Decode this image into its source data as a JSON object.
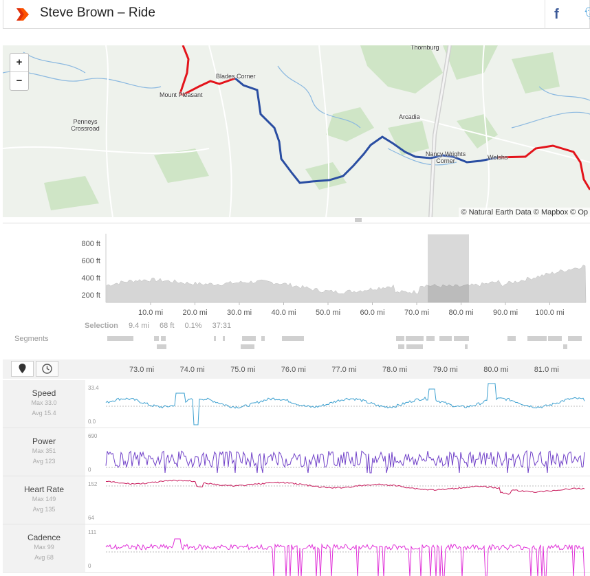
{
  "header": {
    "title": "Steve Brown – Ride",
    "share_facebook": "f",
    "share_twitter": "t"
  },
  "map": {
    "zoom_in": "+",
    "zoom_out": "−",
    "attribution": "© Natural Earth Data © Mapbox © Op",
    "towns": [
      "Thornburg",
      "Blades Corner",
      "Mount Pleasant",
      "Penneys Crossroad",
      "Arcadia",
      "Nancy Wrights Corner",
      "Welshs"
    ],
    "route_color_red": "#e3141b",
    "route_color_blue": "#2a4ea2"
  },
  "elevation": {
    "y_ticks": [
      "800 ft",
      "600 ft",
      "400 ft",
      "200 ft"
    ],
    "x_ticks": [
      "10.0 mi",
      "20.0 mi",
      "30.0 mi",
      "40.0 mi",
      "50.0 mi",
      "60.0 mi",
      "70.0 mi",
      "80.0 mi",
      "90.0 mi",
      "100.0 mi"
    ]
  },
  "selection": {
    "label": "Selection",
    "distance": "9.4 mi",
    "elevation": "68 ft",
    "grade": "0.1%",
    "time": "37:31"
  },
  "segments_label": "Segments",
  "tabs": {
    "map_icon": "map-marker-icon",
    "time_icon": "clock-icon"
  },
  "detail_x_ticks": [
    "73.0 mi",
    "74.0 mi",
    "75.0 mi",
    "76.0 mi",
    "77.0 mi",
    "78.0 mi",
    "79.0 mi",
    "80.0 mi",
    "81.0 mi"
  ],
  "streams": [
    {
      "name": "Speed",
      "max": "Max 33.0",
      "avg": "Avg 15.4",
      "axis_top": "33.4",
      "axis_bottom": "0.0",
      "color": "#3ca0d0"
    },
    {
      "name": "Power",
      "max": "Max 351",
      "avg": "Avg 123",
      "axis_top": "690",
      "axis_bottom": "0",
      "color": "#7040c8"
    },
    {
      "name": "Heart Rate",
      "max": "Max 149",
      "avg": "Avg 135",
      "axis_top": "152",
      "axis_bottom": "64",
      "color": "#c8185a"
    },
    {
      "name": "Cadence",
      "max": "Max 99",
      "avg": "Avg 68",
      "axis_top": "111",
      "axis_bottom": "0",
      "color": "#e030d8"
    }
  ]
}
